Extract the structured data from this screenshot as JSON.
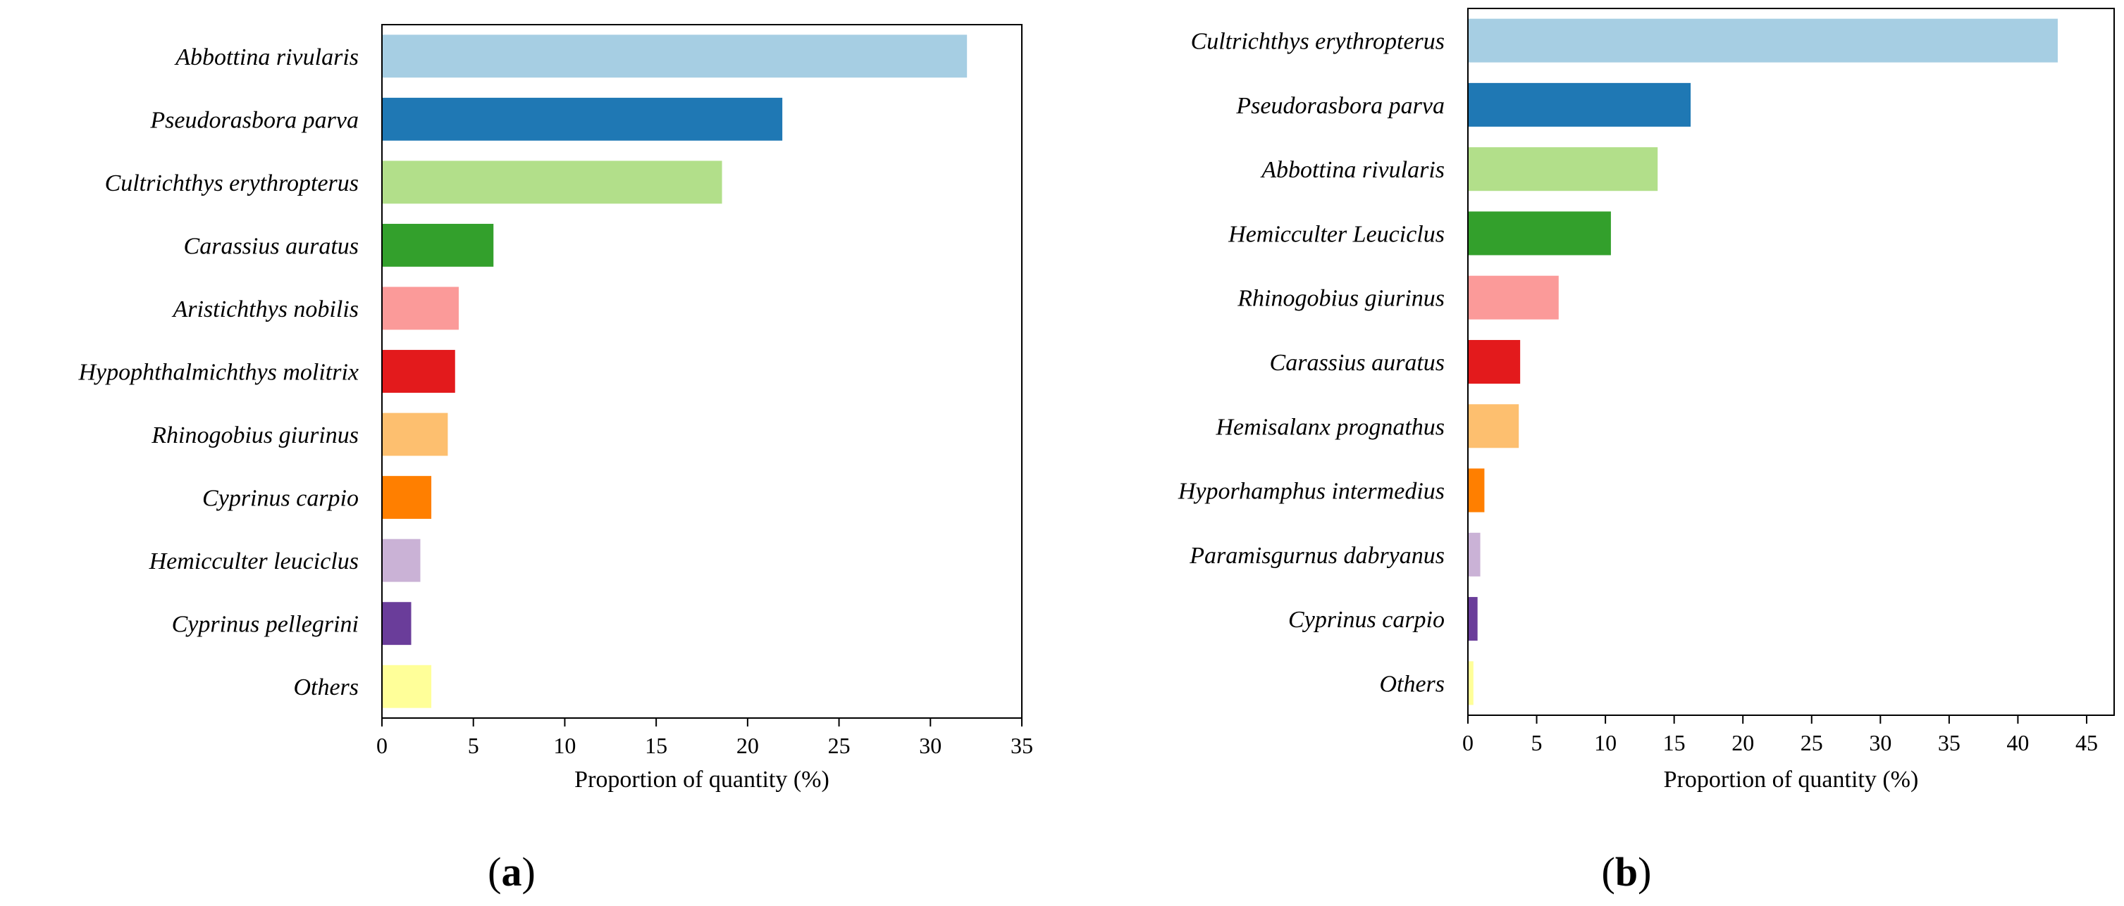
{
  "chart_data": [
    {
      "type": "bar",
      "orientation": "horizontal",
      "panel_label": "a",
      "xlabel": "Proportion of quantity (%)",
      "xlim": [
        0,
        35
      ],
      "xticks": [
        0,
        5,
        10,
        15,
        20,
        25,
        30,
        35
      ],
      "grid": false,
      "categories": [
        "Abbottina rivularis",
        "Pseudorasbora parva",
        "Cultrichthys erythropterus",
        "Carassius auratus",
        "Aristichthys nobilis",
        "Hypophthalmichthys molitrix",
        "Rhinogobius giurinus",
        "Cyprinus carpio",
        "Hemicculter leuciclus",
        "Cyprinus pellegrini",
        "Others"
      ],
      "values": [
        32.0,
        21.9,
        18.6,
        6.1,
        4.2,
        4.0,
        3.6,
        2.7,
        2.1,
        1.6,
        2.7
      ],
      "colors": [
        "#a6cee3",
        "#1f78b4",
        "#b2df8a",
        "#33a02c",
        "#fb9a99",
        "#e31a1c",
        "#fdbf6f",
        "#ff7f00",
        "#cab2d6",
        "#6a3d9a",
        "#ffff99"
      ]
    },
    {
      "type": "bar",
      "orientation": "horizontal",
      "panel_label": "b",
      "xlabel": "Proportion of quantity (%)",
      "xlim": [
        0,
        47
      ],
      "xticks": [
        0,
        5,
        10,
        15,
        20,
        25,
        30,
        35,
        40,
        45
      ],
      "grid": false,
      "categories": [
        "Cultrichthys erythropterus",
        "Pseudorasbora parva",
        "Abbottina rivularis",
        "Hemicculter Leuciclus",
        "Rhinogobius giurinus",
        "Carassius auratus",
        "Hemisalanx prognathus",
        "Hyporhamphus intermedius",
        "Paramisgurnus dabryanus",
        "Cyprinus carpio",
        "Others"
      ],
      "values": [
        42.9,
        16.2,
        13.8,
        10.4,
        6.6,
        3.8,
        3.7,
        1.2,
        0.9,
        0.7,
        0.4
      ],
      "colors": [
        "#a6cee3",
        "#1f78b4",
        "#b2df8a",
        "#33a02c",
        "#fb9a99",
        "#e31a1c",
        "#fdbf6f",
        "#ff7f00",
        "#cab2d6",
        "#6a3d9a",
        "#ffff99"
      ]
    }
  ]
}
